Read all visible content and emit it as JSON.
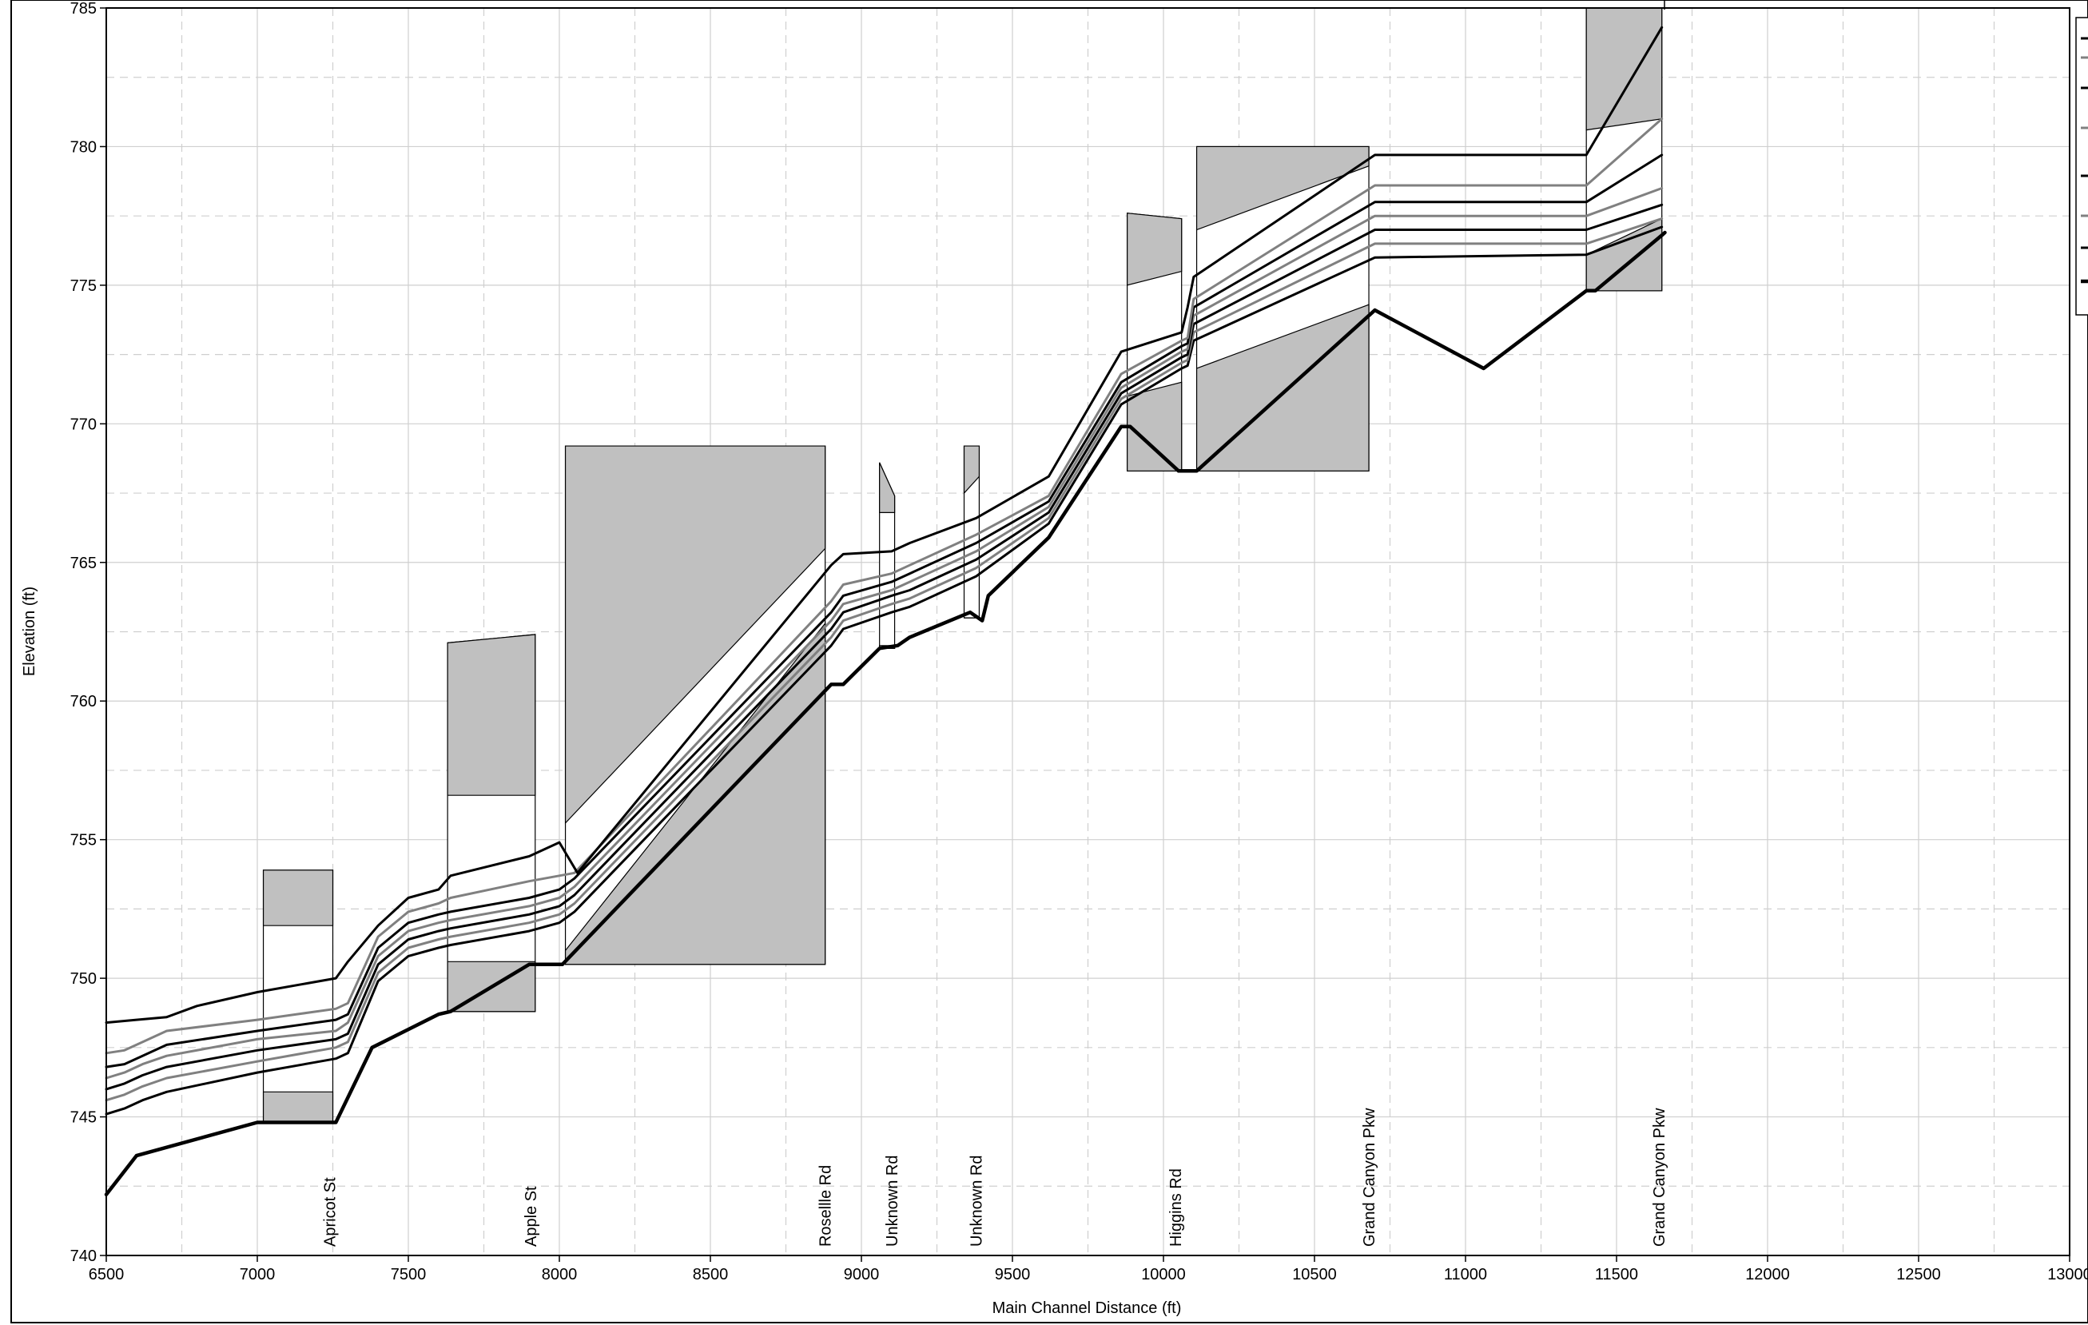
{
  "chart_data": {
    "type": "line",
    "title": "",
    "xlabel": "Main Channel Distance (ft)",
    "ylabel": "Elevation (ft)",
    "xlim": [
      6500,
      13000
    ],
    "ylim": [
      740,
      785
    ],
    "x_ticks": [
      6500,
      7000,
      7500,
      8000,
      8500,
      9000,
      9500,
      10000,
      10500,
      11000,
      11500,
      12000,
      12500,
      13000
    ],
    "y_ticks": [
      740,
      745,
      750,
      755,
      760,
      765,
      770,
      775,
      780,
      785
    ],
    "x_tick_labels": [
      "6500",
      "7000",
      "7500",
      "8000",
      "8500",
      "9000",
      "9500",
      "10000",
      "10500",
      "11000",
      "11500",
      "12000",
      "12500",
      "13000"
    ],
    "y_tick_labels": [
      "740",
      "745",
      "750",
      "755",
      "760",
      "765",
      "770",
      "775",
      "780",
      "785"
    ],
    "grid": true,
    "legend_position": "top-right",
    "colors": {
      "black": "#000000",
      "gray": "#808080",
      "structure": "#c0c0c0"
    },
    "structure_labels": [
      {
        "text": "Apricot St",
        "x": 7240
      },
      {
        "text": "Apple St",
        "x": 7905
      },
      {
        "text": "Rosellle Rd",
        "x": 8880
      },
      {
        "text": "Unknown Rd",
        "x": 9100
      },
      {
        "text": "Unknown Rd",
        "x": 9380
      },
      {
        "text": "Higgins Rd",
        "x": 10040
      },
      {
        "text": "Grand Canyon Pkw",
        "x": 10680
      },
      {
        "text": "Grand Canyon Pkw",
        "x": 11640
      }
    ],
    "structures": [
      {
        "deck": [
          [
            7020,
            753.9
          ],
          [
            7250,
            753.9
          ]
        ],
        "fill_top": [
          [
            7020,
            751.9
          ],
          [
            7250,
            751.9
          ]
        ],
        "low": [
          [
            7020,
            745.9
          ],
          [
            7250,
            745.9
          ]
        ],
        "base": 744.8
      },
      {
        "deck": [
          [
            7630,
            762.1
          ],
          [
            7920,
            762.4
          ]
        ],
        "fill_top": [
          [
            7630,
            756.6
          ],
          [
            7920,
            756.6
          ]
        ],
        "low": [
          [
            7630,
            750.6
          ],
          [
            7920,
            750.6
          ]
        ],
        "base": 748.8
      },
      {
        "deck": [
          [
            8020,
            769.2
          ],
          [
            8880,
            769.2
          ]
        ],
        "fill_top": [
          [
            8020,
            755.6
          ],
          [
            8880,
            765.5
          ]
        ],
        "low": [
          [
            8020,
            751.0
          ],
          [
            8880,
            762.8
          ]
        ],
        "base": 750.5
      },
      {
        "deck": [
          [
            9060,
            768.6
          ],
          [
            9110,
            767.4
          ]
        ],
        "fill_top": [
          [
            9060,
            766.8
          ],
          [
            9110,
            766.8
          ]
        ],
        "low": [
          [
            9060,
            762.0
          ],
          [
            9110,
            762.0
          ]
        ],
        "base": 761.9
      },
      {
        "deck": [
          [
            9340,
            769.2
          ],
          [
            9390,
            769.2
          ]
        ],
        "fill_top": [
          [
            9340,
            767.5
          ],
          [
            9390,
            768.1
          ]
        ],
        "low": [
          [
            9340,
            763.0
          ],
          [
            9390,
            763.0
          ]
        ],
        "base": 763.0
      },
      {
        "deck": [
          [
            9880,
            777.6
          ],
          [
            10060,
            777.4
          ]
        ],
        "fill_top": [
          [
            9880,
            775.0
          ],
          [
            10060,
            775.5
          ]
        ],
        "low": [
          [
            9880,
            771.0
          ],
          [
            10060,
            771.5
          ]
        ],
        "base": 768.3
      },
      {
        "deck": [
          [
            10110,
            780.0
          ],
          [
            10680,
            780.0
          ]
        ],
        "fill_top": [
          [
            10110,
            777.0
          ],
          [
            10680,
            779.3
          ]
        ],
        "low": [
          [
            10110,
            772.0
          ],
          [
            10680,
            774.3
          ]
        ],
        "base": 768.3
      },
      {
        "deck": [
          [
            11400,
            785.0
          ],
          [
            11650,
            785.0
          ]
        ],
        "fill_top": [
          [
            11400,
            780.6
          ],
          [
            11650,
            781.0
          ]
        ],
        "low": [
          [
            11400,
            776.1
          ],
          [
            11650,
            777.4
          ]
        ],
        "base": 774.8
      }
    ],
    "series": [
      {
        "color": "black",
        "width": 4.5,
        "x": [
          6500,
          6600,
          7000,
          7260,
          7380,
          7600,
          7640,
          7900,
          8010,
          8900,
          8940,
          9060,
          9120,
          9160,
          9360,
          9400,
          9420,
          9620,
          9860,
          9890,
          10050,
          10110,
          10700,
          11060,
          11400,
          11430,
          11650,
          11660
        ],
        "y": [
          742.2,
          743.6,
          744.8,
          744.8,
          747.5,
          748.7,
          748.8,
          750.5,
          750.5,
          760.6,
          760.6,
          761.9,
          762.0,
          762.3,
          763.2,
          762.9,
          763.8,
          765.9,
          769.9,
          769.9,
          768.3,
          768.3,
          774.1,
          772.0,
          774.8,
          774.8,
          776.8,
          776.9
        ]
      },
      {
        "color": "black",
        "width": 3,
        "x": [
          6500,
          6560,
          6620,
          6700,
          7000,
          7260,
          7300,
          7400,
          7500,
          7600,
          7640,
          7900,
          8000,
          8050,
          8900,
          8940,
          9100,
          9160,
          9380,
          9620,
          9860,
          10060,
          10080,
          10100,
          10700,
          11400,
          11650
        ],
        "y": [
          745.1,
          745.3,
          745.6,
          745.9,
          746.6,
          747.1,
          747.3,
          749.9,
          750.8,
          751.1,
          751.2,
          751.7,
          752.0,
          752.4,
          762.0,
          762.6,
          763.2,
          763.4,
          764.5,
          766.4,
          770.7,
          772.0,
          772.1,
          773.0,
          776.0,
          776.1,
          777.1
        ]
      },
      {
        "color": "gray",
        "width": 3,
        "x": [
          6500,
          6560,
          6620,
          6700,
          7000,
          7260,
          7300,
          7400,
          7500,
          7600,
          7640,
          7900,
          8000,
          8050,
          8900,
          8940,
          9100,
          9160,
          9380,
          9620,
          9860,
          10060,
          10080,
          10100,
          10700,
          11400,
          11650
        ],
        "y": [
          745.6,
          745.8,
          746.1,
          746.4,
          747.0,
          747.5,
          747.7,
          750.2,
          751.1,
          751.4,
          751.5,
          752.0,
          752.3,
          752.7,
          762.3,
          762.9,
          763.5,
          763.7,
          764.8,
          766.6,
          770.9,
          772.2,
          772.3,
          773.3,
          776.5,
          776.5,
          777.4
        ]
      },
      {
        "color": "black",
        "width": 3,
        "x": [
          6500,
          6560,
          6620,
          6700,
          7000,
          7260,
          7300,
          7400,
          7500,
          7600,
          7640,
          7900,
          8000,
          8050,
          8900,
          8940,
          9100,
          9160,
          9380,
          9620,
          9860,
          10060,
          10080,
          10100,
          10700,
          11400,
          11650
        ],
        "y": [
          746.0,
          746.2,
          746.5,
          746.8,
          747.4,
          747.8,
          748.0,
          750.5,
          751.4,
          751.7,
          751.8,
          752.3,
          752.6,
          753.0,
          762.6,
          763.2,
          763.8,
          764.0,
          765.1,
          766.8,
          771.1,
          772.4,
          772.5,
          773.6,
          777.0,
          777.0,
          777.9
        ]
      },
      {
        "color": "gray",
        "width": 3,
        "x": [
          6500,
          6560,
          6620,
          6700,
          7000,
          7260,
          7300,
          7400,
          7500,
          7600,
          7640,
          7900,
          8000,
          8050,
          8900,
          8940,
          9100,
          9160,
          9380,
          9620,
          9860,
          10060,
          10080,
          10100,
          10700,
          11400,
          11650
        ],
        "y": [
          746.4,
          746.6,
          746.9,
          747.2,
          747.8,
          748.1,
          748.4,
          750.8,
          751.7,
          752.0,
          752.1,
          752.6,
          752.9,
          753.3,
          762.9,
          763.5,
          764.0,
          764.3,
          765.4,
          767.0,
          771.3,
          772.6,
          772.7,
          773.9,
          777.5,
          777.5,
          778.5
        ]
      },
      {
        "color": "black",
        "width": 3,
        "x": [
          6500,
          6560,
          6620,
          6700,
          7000,
          7260,
          7300,
          7400,
          7500,
          7600,
          7640,
          7900,
          8000,
          8050,
          8900,
          8940,
          9100,
          9160,
          9380,
          9620,
          9860,
          10060,
          10080,
          10100,
          10700,
          11400,
          11650
        ],
        "y": [
          746.8,
          746.9,
          747.2,
          747.6,
          748.1,
          748.5,
          748.7,
          751.1,
          752.0,
          752.3,
          752.4,
          752.9,
          753.2,
          753.6,
          763.2,
          763.8,
          764.3,
          764.6,
          765.7,
          767.2,
          771.5,
          772.8,
          772.9,
          774.2,
          778.0,
          778.0,
          779.7
        ]
      },
      {
        "color": "gray",
        "width": 3,
        "x": [
          6500,
          6560,
          6620,
          6700,
          7000,
          7260,
          7300,
          7400,
          7500,
          7600,
          7640,
          7900,
          8000,
          8050,
          8900,
          8940,
          9100,
          9160,
          9380,
          9620,
          9860,
          10060,
          10080,
          10100,
          10700,
          11400,
          11650
        ],
        "y": [
          747.3,
          747.4,
          747.7,
          748.1,
          748.5,
          748.9,
          749.1,
          751.5,
          752.4,
          752.7,
          752.9,
          753.5,
          753.7,
          753.8,
          763.6,
          764.2,
          764.6,
          764.9,
          766.0,
          767.4,
          771.8,
          773.0,
          773.1,
          774.5,
          778.6,
          778.6,
          781.0
        ]
      },
      {
        "color": "black",
        "width": 3,
        "x": [
          6500,
          6600,
          6700,
          6800,
          7000,
          7260,
          7300,
          7400,
          7500,
          7600,
          7640,
          7900,
          8000,
          8060,
          8900,
          8940,
          9100,
          9160,
          9380,
          9620,
          9860,
          10060,
          10080,
          10100,
          10700,
          11400,
          11650
        ],
        "y": [
          748.4,
          748.5,
          748.6,
          749.0,
          749.5,
          750.0,
          750.6,
          751.9,
          752.9,
          753.2,
          753.7,
          754.4,
          754.9,
          753.8,
          764.9,
          765.3,
          765.4,
          765.7,
          766.6,
          768.1,
          772.6,
          773.3,
          774.2,
          775.3,
          779.7,
          779.7,
          784.3
        ]
      }
    ]
  }
}
